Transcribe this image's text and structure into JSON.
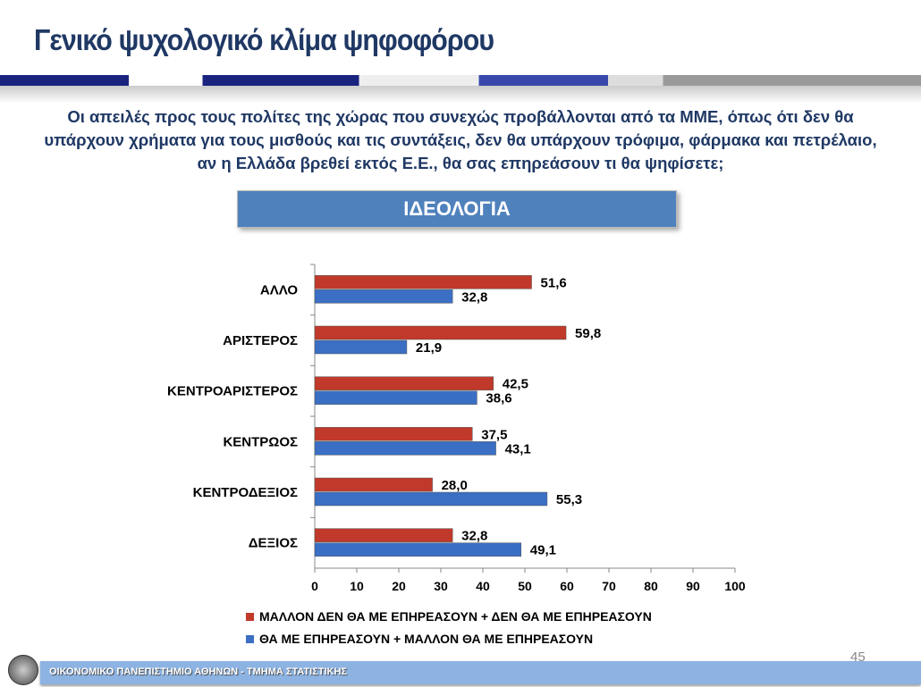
{
  "title": "Γενικό ψυχολογικό κλίμα ψηφοφόρου",
  "question": "Οι απειλές προς τους πολίτες της χώρας που συνεχώς προβάλλονται από τα ΜΜΕ, όπως ότι δεν θα υπάρχουν χρήματα για τους μισθούς και τις συντάξεις, δεν θα υπάρχουν τρόφιμα, φάρμακα και πετρέλαιο, αν η Ελλάδα βρεθεί εκτός Ε.Ε., θα σας επηρεάσουν τι θα ψηφίσετε;",
  "section_label": "ΙΔΕΟΛΟΓΙΑ",
  "page_number": "45",
  "footer": "ΟΙΚΟΝΟΜΙΚΟ ΠΑΝΕΠΙΣΤΗΜΙΟ ΑΘΗΝΩΝ - ΤΜΗΜΑ ΣΤΑΤΙΣΤΙΚΗΣ",
  "chart_data": {
    "type": "bar",
    "orientation": "horizontal",
    "categories": [
      "ΑΛΛΟ",
      "ΑΡΙΣΤΕΡΟΣ",
      "ΚΕΝΤΡΟΑΡΙΣΤΕΡΟΣ",
      "ΚΕΝΤΡΩΟΣ",
      "ΚΕΝΤΡΟΔΕΞΙΟΣ",
      "ΔΕΞΙΟΣ"
    ],
    "series": [
      {
        "name": "ΜΑΛΛΟΝ ΔΕΝ ΘΑ  ΜΕ ΕΠΗΡΕΑΣΟΥΝ + ΔΕΝ ΘΑ ΜΕ ΕΠΗΡΕΑΣΟΥΝ",
        "color": "#c0392b",
        "values": [
          51.6,
          59.8,
          42.5,
          37.5,
          28.0,
          32.8
        ],
        "labels": [
          "51,6",
          "59,8",
          "42,5",
          "37,5",
          "28,0",
          "32,8"
        ]
      },
      {
        "name": "ΘΑ ΜΕ ΕΠΗΡΕΑΣΟΥΝ + ΜΑΛΛΟΝ ΘΑ ΜΕ ΕΠΗΡΕΑΣΟΥΝ",
        "color": "#3a6fc4",
        "values": [
          32.8,
          21.9,
          38.6,
          43.1,
          55.3,
          49.1
        ],
        "labels": [
          "32,8",
          "21,9",
          "38,6",
          "43,1",
          "55,3",
          "49,1"
        ]
      }
    ],
    "xlim": [
      0,
      100
    ],
    "xticks": [
      "0",
      "10",
      "20",
      "30",
      "40",
      "50",
      "60",
      "70",
      "80",
      "90",
      "100"
    ],
    "legend": "bottom"
  }
}
